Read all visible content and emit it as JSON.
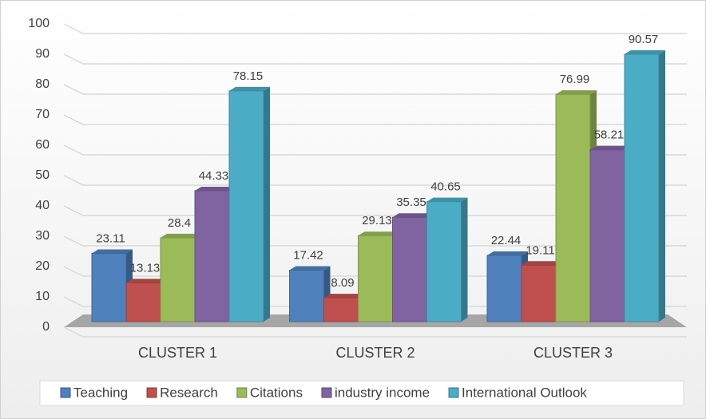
{
  "chart_data": {
    "type": "bar3d",
    "categories": [
      "CLUSTER 1",
      "CLUSTER 2",
      "CLUSTER 3"
    ],
    "series": [
      {
        "name": "Teaching",
        "color": "#4f81bd",
        "values": [
          23.11,
          17.42,
          22.44
        ]
      },
      {
        "name": "Research",
        "color": "#c0504d",
        "values": [
          13.13,
          8.09,
          19.11
        ]
      },
      {
        "name": "Citations",
        "color": "#9bbb59",
        "values": [
          28.4,
          29.13,
          76.99
        ]
      },
      {
        "name": "industry income",
        "color": "#8064a2",
        "values": [
          44.33,
          35.35,
          58.21
        ]
      },
      {
        "name": "International Outlook",
        "color": "#4bacc6",
        "values": [
          78.15,
          40.65,
          90.57
        ]
      }
    ],
    "ylim": [
      0,
      100
    ],
    "yticks": [
      0,
      10,
      20,
      30,
      40,
      50,
      60,
      70,
      80,
      90,
      100
    ],
    "grid": true,
    "legend": "bottom"
  }
}
